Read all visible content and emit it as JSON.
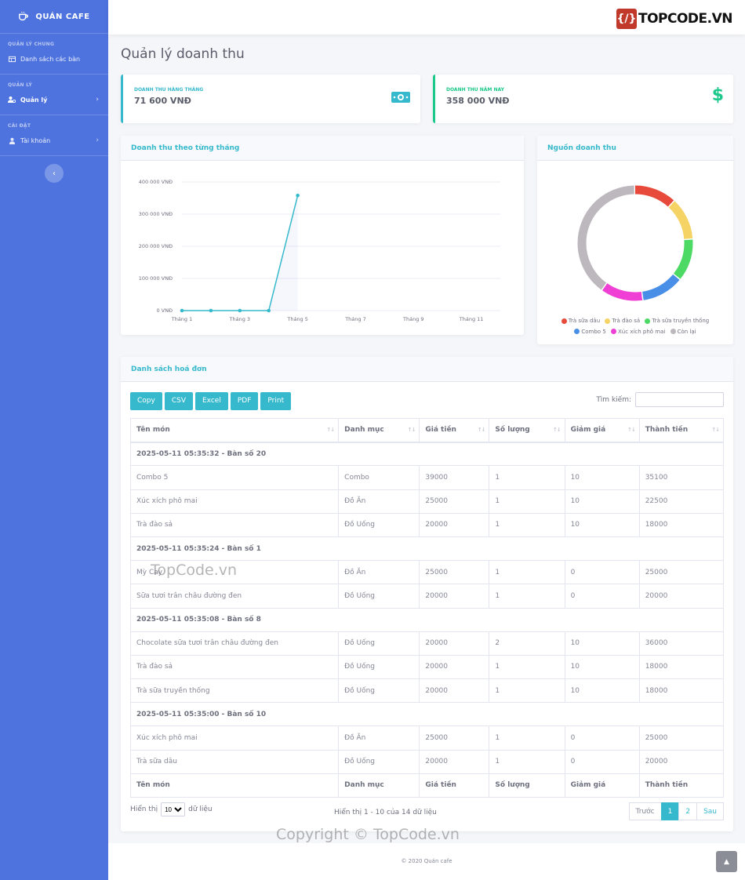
{
  "brand": {
    "name": "QUÁN CAFE"
  },
  "sidebar": {
    "headings": [
      "QUẢN LÝ CHUNG",
      "QUẢN LÝ",
      "CÀI ĐẶT"
    ],
    "items": [
      {
        "label": "Danh sách các bàn",
        "icon": "table-icon"
      },
      {
        "label": "Quản lý",
        "icon": "users-cog-icon"
      },
      {
        "label": "Tài khoản",
        "icon": "user-icon"
      }
    ]
  },
  "topbar": {
    "logo_text": "TOPCODE.VN"
  },
  "page": {
    "title": "Quản lý doanh thu"
  },
  "stats": [
    {
      "label": "DOANH THU HÀNG THÁNG",
      "value": "71 600 VNĐ",
      "icon": "money-bill-icon",
      "color": "#36b9cc"
    },
    {
      "label": "DOANH THU NĂM NAY",
      "value": "358 000 VNĐ",
      "icon": "dollar-icon",
      "color": "#1cc88a"
    }
  ],
  "line_chart": {
    "title": "Doanh thu theo từng tháng",
    "y_ticks": [
      "0 VNĐ",
      "100 000 VNĐ",
      "200 000 VNĐ",
      "300 000 VNĐ",
      "400 000 VNĐ"
    ],
    "x_ticks": [
      "Tháng 1",
      "Tháng 3",
      "Tháng 5",
      "Tháng 7",
      "Tháng 9",
      "Tháng 11"
    ]
  },
  "pie_chart": {
    "title": "Nguồn doanh thu",
    "legend": [
      "Trà sữa dâu",
      "Trà đào sả",
      "Trà sữa truyền thống",
      "Combo 5",
      "Xúc xích phô mai",
      "Còn lại"
    ]
  },
  "chart_data": [
    {
      "type": "line",
      "title": "Doanh thu theo từng tháng",
      "x": [
        "Tháng 1",
        "Tháng 2",
        "Tháng 3",
        "Tháng 4",
        "Tháng 5"
      ],
      "values": [
        0,
        0,
        0,
        0,
        358000
      ],
      "ylim": [
        0,
        400000
      ],
      "color": "#36b9cc"
    },
    {
      "type": "pie",
      "title": "Nguồn doanh thu",
      "labels": [
        "Trà sữa dâu",
        "Trà đào sả",
        "Trà sữa truyền thống",
        "Combo 5",
        "Xúc xích phô mai",
        "Còn lại"
      ],
      "values": [
        12,
        12,
        12,
        12,
        12,
        40
      ],
      "colors": [
        "#e74a3b",
        "#f6d365",
        "#4cd964",
        "#4a8fe7",
        "#ef3fd4",
        "#bdb8bd"
      ]
    }
  ],
  "table": {
    "title": "Danh sách hoá đơn",
    "buttons": [
      "Copy",
      "CSV",
      "Excel",
      "PDF",
      "Print"
    ],
    "search_label": "Tìm kiếm:",
    "columns": [
      "Tên món",
      "Danh mục",
      "Giá tiền",
      "Số lượng",
      "Giảm giá",
      "Thành tiền"
    ],
    "rows": [
      {
        "group": "2025-05-11 05:35:32 - Bàn số 20"
      },
      {
        "cells": [
          "Combo 5",
          "Combo",
          "39000",
          "1",
          "10",
          "35100"
        ]
      },
      {
        "cells": [
          "Xúc xích phô mai",
          "Đồ Ăn",
          "25000",
          "1",
          "10",
          "22500"
        ]
      },
      {
        "cells": [
          "Trà đào sả",
          "Đồ Uống",
          "20000",
          "1",
          "10",
          "18000"
        ]
      },
      {
        "group": "2025-05-11 05:35:24 - Bàn số 1"
      },
      {
        "cells": [
          "Mỳ Cay",
          "Đồ Ăn",
          "25000",
          "1",
          "0",
          "25000"
        ]
      },
      {
        "cells": [
          "Sữa tươi trân châu đường đen",
          "Đồ Uống",
          "20000",
          "1",
          "0",
          "20000"
        ]
      },
      {
        "group": "2025-05-11 05:35:08 - Bàn số 8"
      },
      {
        "cells": [
          "Chocolate sữa tươi trân châu đường đen",
          "Đồ Uống",
          "20000",
          "2",
          "10",
          "36000"
        ]
      },
      {
        "cells": [
          "Trà đào sả",
          "Đồ Uống",
          "20000",
          "1",
          "10",
          "18000"
        ]
      },
      {
        "cells": [
          "Trà sữa truyền thống",
          "Đồ Uống",
          "20000",
          "1",
          "10",
          "18000"
        ]
      },
      {
        "group": "2025-05-11 05:35:00 - Bàn số 10"
      },
      {
        "cells": [
          "Xúc xích phô mai",
          "Đồ Ăn",
          "25000",
          "1",
          "0",
          "25000"
        ]
      },
      {
        "cells": [
          "Trà sữa dâu",
          "Đồ Uống",
          "20000",
          "1",
          "0",
          "20000"
        ]
      }
    ],
    "length_prefix": "Hiển thị",
    "length_value": "10",
    "length_suffix": "dữ liệu",
    "info": "Hiển thị 1 - 10 của 14 dữ liệu",
    "pager": {
      "prev": "Trước",
      "pages": [
        "1",
        "2"
      ],
      "next": "Sau"
    }
  },
  "footer": {
    "text": "© 2020 Quán cafe"
  },
  "watermarks": [
    "TopCode.vn",
    "Copyright © TopCode.vn"
  ]
}
